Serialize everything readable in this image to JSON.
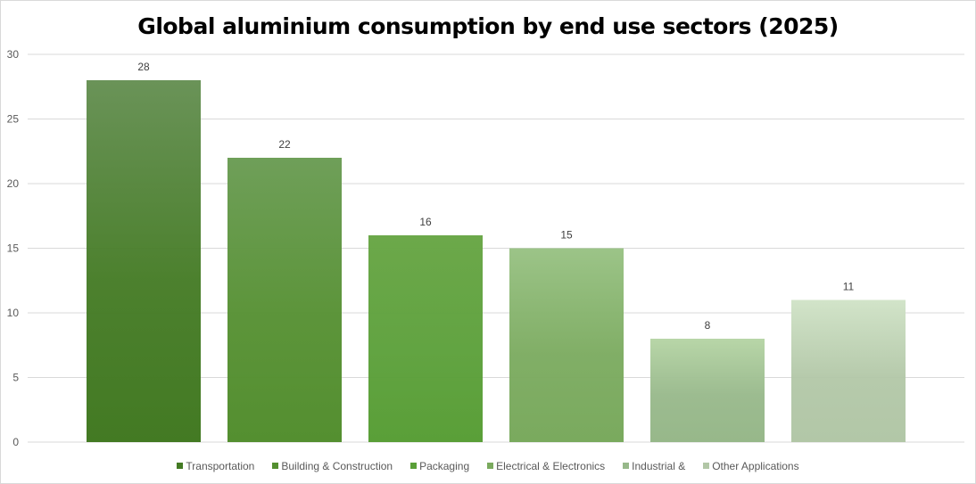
{
  "chart_data": {
    "type": "bar",
    "title": "Global aluminium consumption by end use sectors (2025)",
    "categories": [
      "Transportation",
      "Building & Construction",
      "Packaging",
      "Electrical & Electronics",
      "Industrial &",
      "Other Applications"
    ],
    "values": [
      28,
      22,
      16,
      15,
      8,
      11
    ],
    "ylim": [
      0,
      30
    ],
    "yticks": [
      "0",
      "5",
      "10",
      "15",
      "20",
      "25",
      "30"
    ],
    "grid": true,
    "legend": "bottom",
    "colors": [
      [
        "#6a9358",
        "#437a23"
      ],
      [
        "#6f9f59",
        "#548f30"
      ],
      [
        "#6ca84a",
        "#5a9f38"
      ],
      [
        "#9cc488",
        "#7aaa5e"
      ],
      [
        "#b8d6a8",
        "#97b88a"
      ],
      [
        "#d2e4c9",
        "#b2c7a7"
      ]
    ]
  }
}
